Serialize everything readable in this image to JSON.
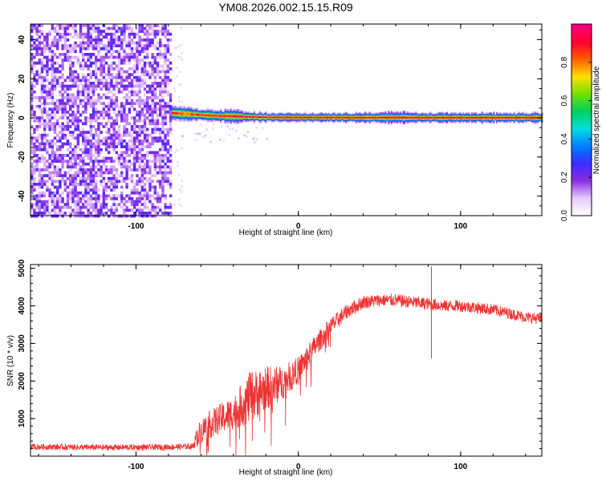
{
  "figure_title": "YM08.2026.002.15.15.R09",
  "chart_data": [
    {
      "type": "heatmap",
      "title": "YM08.2026.002.15.15.R09",
      "xlabel": "Height of straight line (km)",
      "ylabel": "Frequency (Hz)",
      "xlim": [
        -165,
        150
      ],
      "ylim": [
        -50,
        48
      ],
      "xticks": [
        -100,
        0,
        100
      ],
      "yticks": [
        -40,
        -20,
        0,
        20,
        40
      ],
      "colorbar": {
        "label": "Normalized spectral amplitude",
        "range": [
          0,
          1
        ],
        "ticks": [
          0.0,
          0.2,
          0.4,
          0.6,
          0.8
        ],
        "colors": [
          "#ffffff",
          "#e6c8ff",
          "#8a2be2",
          "#3a2cff",
          "#0080ff",
          "#00e0e0",
          "#00d060",
          "#70e000",
          "#ffe000",
          "#ff6000",
          "#ff0030",
          "#ff0080"
        ]
      },
      "noise_region": {
        "x_from": -165,
        "x_to": -78,
        "freq_range": [
          -50,
          48
        ],
        "amplitude": [
          0.05,
          0.25
        ]
      },
      "carrier": {
        "x_from": -78,
        "x_to": 150,
        "points": [
          {
            "x": -78,
            "freq": 2.5,
            "width": 7,
            "peak": 0.9
          },
          {
            "x": -70,
            "freq": 2.0,
            "width": 6,
            "peak": 0.8
          },
          {
            "x": -60,
            "freq": 1.5,
            "width": 5,
            "peak": 0.9
          },
          {
            "x": -50,
            "freq": 1.0,
            "width": 5,
            "peak": 0.85
          },
          {
            "x": -40,
            "freq": 0.8,
            "width": 6,
            "peak": 0.9
          },
          {
            "x": -30,
            "freq": 0.5,
            "width": 4,
            "peak": 0.95
          },
          {
            "x": -20,
            "freq": 0.3,
            "width": 4,
            "peak": 0.95
          },
          {
            "x": 0,
            "freq": 0.2,
            "width": 4,
            "peak": 0.95
          },
          {
            "x": 20,
            "freq": 0.2,
            "width": 4,
            "peak": 0.95
          },
          {
            "x": 40,
            "freq": 0.1,
            "width": 4,
            "peak": 0.95
          },
          {
            "x": 60,
            "freq": 0.2,
            "width": 5,
            "peak": 0.95
          },
          {
            "x": 80,
            "freq": 0.1,
            "width": 4,
            "peak": 0.95
          },
          {
            "x": 100,
            "freq": 0.1,
            "width": 4,
            "peak": 0.95
          },
          {
            "x": 120,
            "freq": 0.1,
            "width": 4,
            "peak": 0.95
          },
          {
            "x": 150,
            "freq": 0.1,
            "width": 4,
            "peak": 0.95
          }
        ]
      }
    },
    {
      "type": "line",
      "xlabel": "Height of straight line (km)",
      "ylabel": "SNR (10 * v/v)",
      "xlim": [
        -165,
        150
      ],
      "ylim": [
        0,
        5100
      ],
      "xticks": [
        -100,
        0,
        100
      ],
      "yticks": [
        1000,
        2000,
        3000,
        4000,
        5000
      ],
      "color": "#ee3333",
      "series": [
        {
          "x": [
            -165,
            -120,
            -80,
            -65,
            -62,
            -58,
            -50,
            -40,
            -30,
            -20,
            -10,
            0,
            10,
            20,
            30,
            40,
            50,
            60,
            70,
            80,
            90,
            100,
            110,
            120,
            130,
            140,
            150
          ],
          "values": [
            250,
            230,
            240,
            260,
            550,
            750,
            950,
            1150,
            1550,
            1800,
            1950,
            2300,
            2900,
            3450,
            3850,
            4100,
            4150,
            4150,
            4100,
            4050,
            4000,
            4000,
            3950,
            3900,
            3800,
            3700,
            3650
          ],
          "noise": [
            80,
            80,
            80,
            80,
            300,
            350,
            400,
            450,
            700,
            600,
            450,
            350,
            300,
            250,
            200,
            180,
            170,
            170,
            170,
            170,
            160,
            160,
            160,
            160,
            150,
            150,
            150
          ]
        }
      ],
      "spikes": [
        {
          "x": 82,
          "value": 5050
        },
        {
          "x": 82,
          "value": 2600
        }
      ]
    }
  ]
}
